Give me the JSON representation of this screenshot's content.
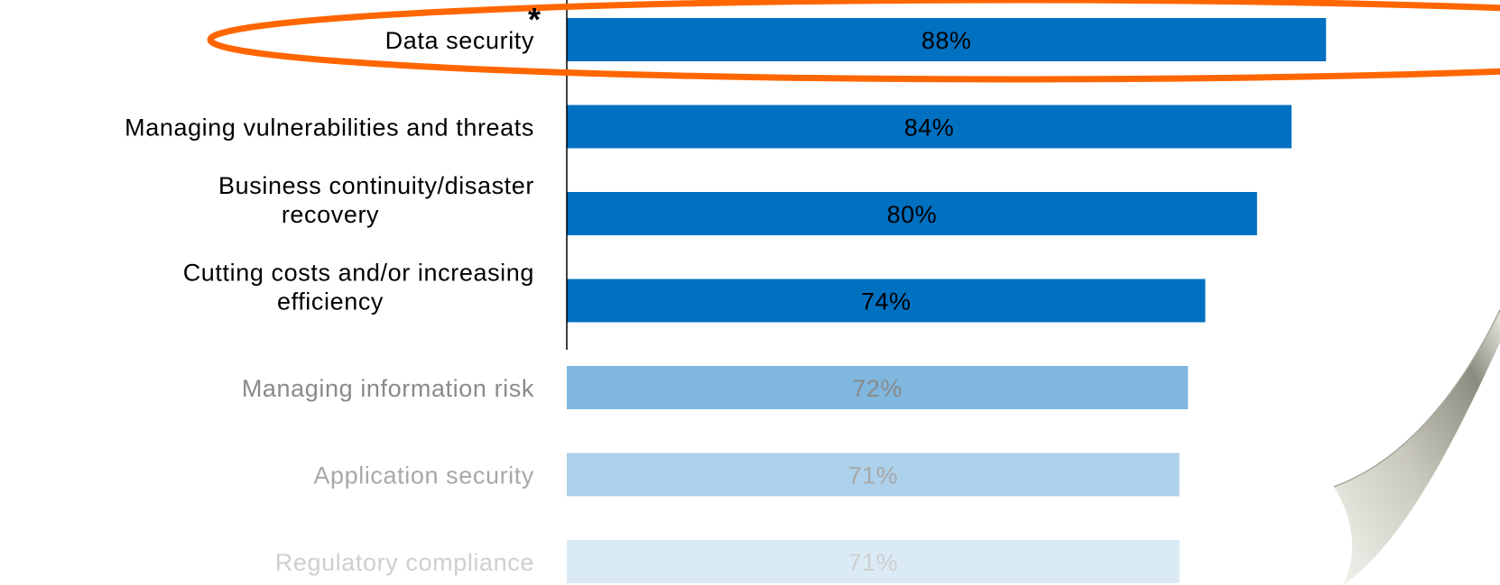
{
  "chart_data": {
    "type": "bar",
    "orientation": "horizontal",
    "categories": [
      "Data security",
      "Managing vulnerabilities and threats",
      "Business continuity/disaster recovery",
      "Cutting costs and/or increasing efficiency",
      "Managing information risk",
      "Application security",
      "Regulatory compliance"
    ],
    "values": [
      88,
      84,
      80,
      74,
      72,
      71,
      71
    ],
    "value_labels": [
      "88%",
      "84%",
      "80%",
      "74%",
      "72%",
      "71%",
      "71%"
    ],
    "highlighted_category": "Data security",
    "highlight_marker": "*",
    "xlim": [
      0,
      100
    ],
    "grid": false,
    "colors": {
      "bar": "#0070c0",
      "highlight_ellipse": "#ff6600",
      "label_text": "#000000"
    }
  }
}
